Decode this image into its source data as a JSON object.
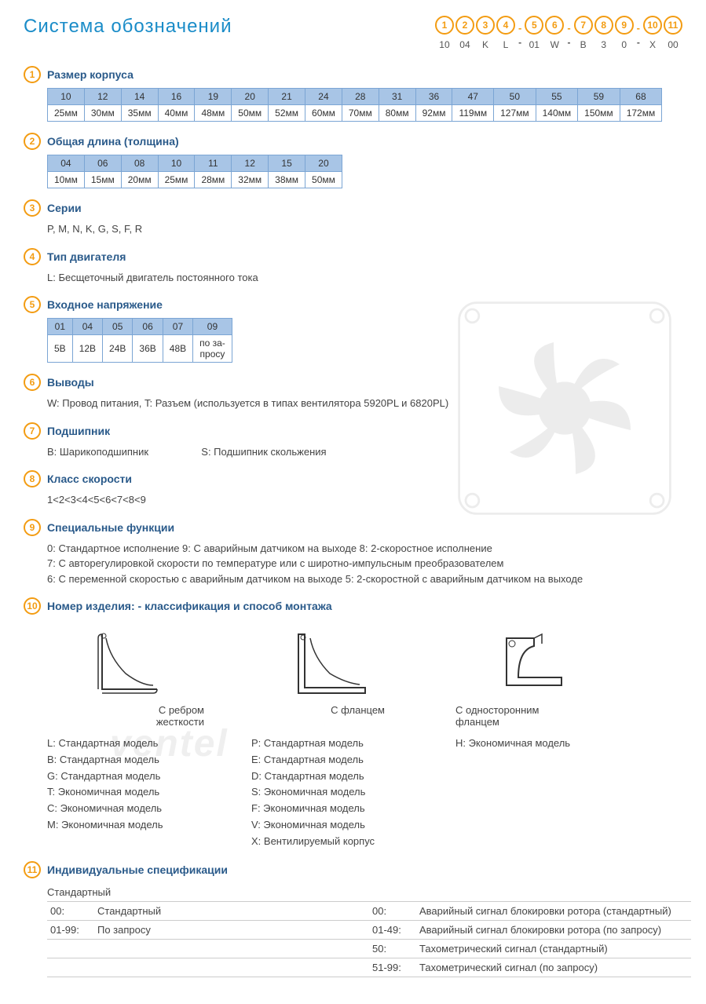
{
  "title": "Система обозначений",
  "colors": {
    "accent": "#f39c12",
    "title": "#1a8cc8",
    "section": "#2a5a8a",
    "th_bg": "#a8c5e6",
    "th_border": "#7ba5d4"
  },
  "code_positions": [
    {
      "n": "1",
      "v": "10"
    },
    {
      "n": "2",
      "v": "04"
    },
    {
      "n": "3",
      "v": "K"
    },
    {
      "n": "4",
      "v": "L"
    },
    {
      "dash": true
    },
    {
      "n": "5",
      "v": "01"
    },
    {
      "n": "6",
      "v": "W"
    },
    {
      "dash": true
    },
    {
      "n": "7",
      "v": "B"
    },
    {
      "n": "8",
      "v": "3"
    },
    {
      "n": "9",
      "v": "0"
    },
    {
      "dash": true
    },
    {
      "n": "10",
      "v": "X"
    },
    {
      "n": "11",
      "v": "00"
    }
  ],
  "s1": {
    "title": "Размер корпуса",
    "codes": [
      "10",
      "12",
      "14",
      "16",
      "19",
      "20",
      "21",
      "24",
      "28",
      "31",
      "36",
      "47",
      "50",
      "55",
      "59",
      "68"
    ],
    "vals": [
      "25мм",
      "30мм",
      "35мм",
      "40мм",
      "48мм",
      "50мм",
      "52мм",
      "60мм",
      "70мм",
      "80мм",
      "92мм",
      "119мм",
      "127мм",
      "140мм",
      "150мм",
      "172мм"
    ]
  },
  "s2": {
    "title": "Общая длина (толщина)",
    "codes": [
      "04",
      "06",
      "08",
      "10",
      "11",
      "12",
      "15",
      "20"
    ],
    "vals": [
      "10мм",
      "15мм",
      "20мм",
      "25мм",
      "28мм",
      "32мм",
      "38мм",
      "50мм"
    ]
  },
  "s3": {
    "title": "Серии",
    "desc": "P, M, N, K, G, S, F, R"
  },
  "s4": {
    "title": "Тип двигателя",
    "desc": "L: Бесщеточный двигатель постоянного тока"
  },
  "s5": {
    "title": "Входное напряжение",
    "codes": [
      "01",
      "04",
      "05",
      "06",
      "07",
      "09"
    ],
    "vals": [
      "5В",
      "12В",
      "24В",
      "36В",
      "48В",
      "по за-\nпросу"
    ]
  },
  "s6": {
    "title": "Выводы",
    "desc": "W: Провод питания, T: Разъем (используется в типах вентилятора  5920PL и 6820PL)"
  },
  "s7": {
    "title": "Подшипник",
    "desc_b": "B: Шарикоподшипник",
    "desc_s": "S: Подшипник скольжения"
  },
  "s8": {
    "title": "Класс скорости",
    "desc": "1<2<3<4<5<6<7<8<9"
  },
  "s9": {
    "title": "Специальные функции",
    "lines": [
      "0: Стандартное исполнение   9:  С аварийным датчиком на выходе   8: 2-скоростное исполнение",
      "7: С авторегулировкой скорости по температуре или с широтно-импульсным преобразователем",
      "6: С переменной скоростью с аварийным датчиком на выходе   5: 2-скоростной с аварийным датчиком на выходе"
    ]
  },
  "s10": {
    "title": "Номер изделия: - классификация  и способ монтажа",
    "mounts": [
      {
        "label": "С ребром\nжесткости"
      },
      {
        "label": "С фланцем"
      },
      {
        "label": "С односторонним\nфланцем"
      }
    ],
    "col1": [
      "L:  Стандартная модель",
      "B:  Стандартная модель",
      "G:  Стандартная модель",
      "T:  Экономичная модель",
      "C:  Экономичная модель",
      "M:  Экономичная модель"
    ],
    "col2": [
      "P:  Стандартная модель",
      "E:  Стандартная модель",
      "D:  Стандартная модель",
      "S:  Экономичная модель",
      "F:  Экономичная модель",
      "V:  Экономичная модель",
      "X:  Вентилируемый корпус"
    ],
    "col3": [
      "H:  Экономичная модель"
    ]
  },
  "s11": {
    "title": "Индивидуальные спецификации",
    "header": "Стандартный",
    "rows": [
      {
        "c1": "00:",
        "c2": "Стандартный",
        "c3": "00:",
        "c4": "Аварийный сигнал блокировки ротора (стандартный)"
      },
      {
        "c1": "01-99:",
        "c2": "По запросу",
        "c3": "01-49:",
        "c4": "Аварийный сигнал блокировки ротора (по запросу)"
      },
      {
        "c1": "",
        "c2": "",
        "c3": "50:",
        "c4": "Тахометрический сигнал (стандартный)"
      },
      {
        "c1": "",
        "c2": "",
        "c3": "51-99:",
        "c4": "Тахометрический сигнал (по запросу)"
      }
    ]
  },
  "watermark": "ventel"
}
